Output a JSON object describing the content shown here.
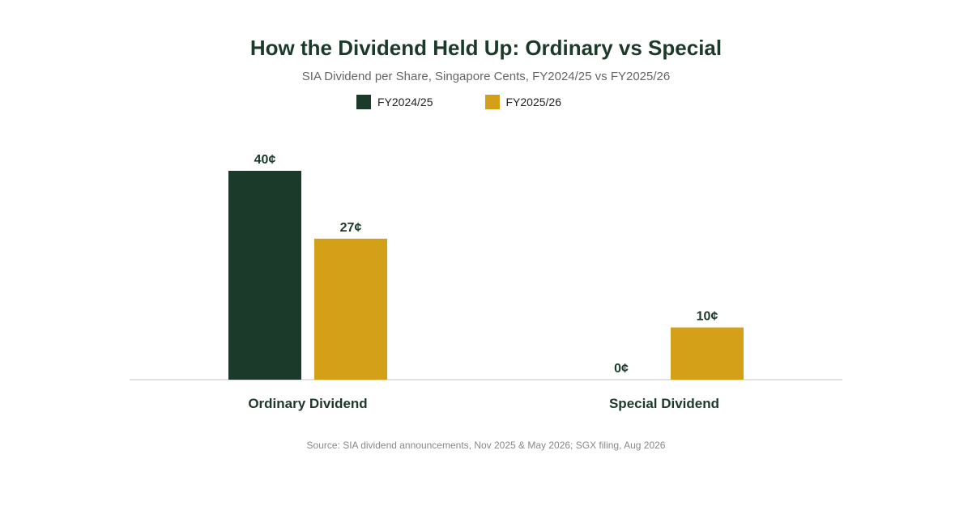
{
  "chart_data": {
    "type": "bar",
    "title": "How the Dividend Held Up: Ordinary vs Special",
    "subtitle": "SIA Dividend per Share, Singapore Cents, FY2024/25 vs FY2025/26",
    "categories": [
      "Ordinary Dividend",
      "Special Dividend"
    ],
    "series": [
      {
        "name": "FY2024/25",
        "color": "#1c3a2a",
        "values": [
          40,
          0
        ],
        "labels": [
          "40¢",
          "0¢"
        ]
      },
      {
        "name": "FY2025/26",
        "color": "#d4a017",
        "values": [
          27,
          10
        ],
        "labels": [
          "27¢",
          "10¢"
        ]
      }
    ],
    "ylim": [
      0,
      45
    ],
    "grid": false,
    "legend_position": "top-center",
    "source": "Source: SIA dividend announcements, Nov 2025 & May 2026; SGX filing, Aug 2026"
  }
}
